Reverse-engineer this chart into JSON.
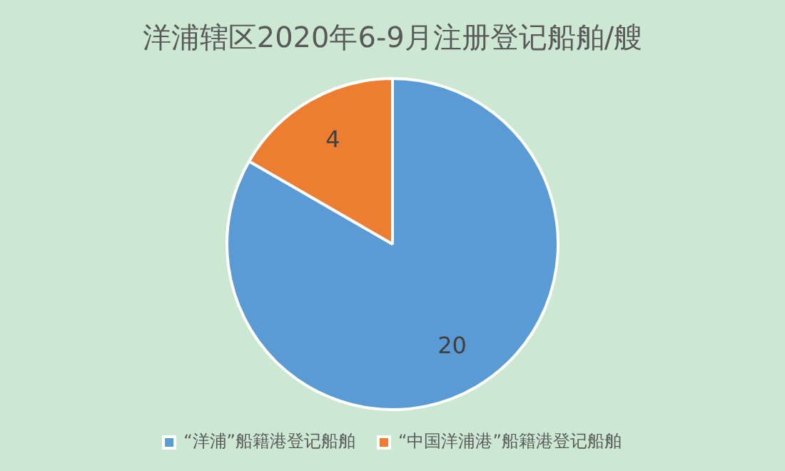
{
  "chart_data": {
    "type": "pie",
    "title": "洋浦辖区2020年6-9月注册登记船舶/艘",
    "categories": [
      "“洋浦”船籍港登记船舶",
      "“中国洋浦港”船籍港登记船舶"
    ],
    "values": [
      20,
      4
    ],
    "colors": [
      "#5b9bd5",
      "#ed7d31"
    ],
    "data_labels": true,
    "legend": "bottom"
  }
}
